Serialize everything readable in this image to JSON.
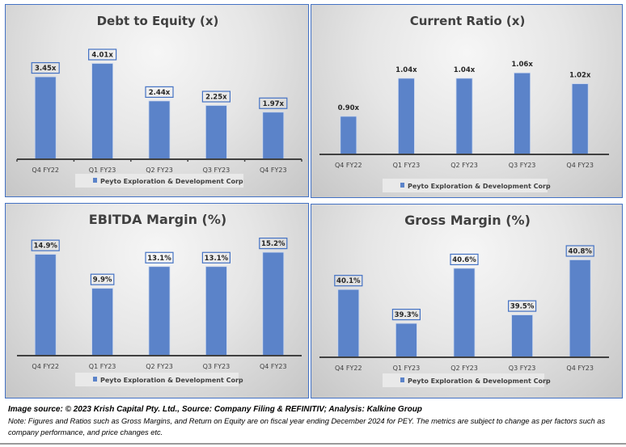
{
  "chart_data": [
    {
      "type": "bar",
      "title": "Debt to Equity (x)",
      "categories": [
        "Q4 FY22",
        "Q1 FY23",
        "Q2 FY23",
        "Q3 FY23",
        "Q4 FY23"
      ],
      "series": [
        {
          "name": "Peyto Exploration & Development Corp",
          "values": [
            3.45,
            4.01,
            2.44,
            2.25,
            1.97
          ]
        }
      ],
      "data_labels": [
        "3.45x",
        "4.01x",
        "2.44x",
        "2.25x",
        "1.97x"
      ],
      "boxed_labels": true,
      "xlabel": "",
      "ylabel": "",
      "ylim": [
        0,
        4.5
      ],
      "grid": false,
      "legend": "bottom"
    },
    {
      "type": "bar",
      "title": "Current Ratio (x)",
      "categories": [
        "Q4 FY22",
        "Q1 FY23",
        "Q2 FY23",
        "Q3 FY23",
        "Q4 FY23"
      ],
      "series": [
        {
          "name": "Peyto Exploration & Development Corp",
          "values": [
            0.9,
            1.04,
            1.04,
            1.06,
            1.02
          ]
        }
      ],
      "data_labels": [
        "0.90x",
        "1.04x",
        "1.04x",
        "1.06x",
        "1.02x"
      ],
      "boxed_labels": false,
      "xlabel": "",
      "ylabel": "",
      "ylim": [
        0.76,
        1.12
      ],
      "grid": false,
      "legend": "bottom"
    },
    {
      "type": "bar",
      "title": "EBITDA Margin (%)",
      "categories": [
        "Q4 FY22",
        "Q1 FY23",
        "Q2 FY23",
        "Q3 FY23",
        "Q4 FY23"
      ],
      "series": [
        {
          "name": "Peyto Exploration & Development Corp",
          "values": [
            14.9,
            9.9,
            13.1,
            13.1,
            15.2
          ]
        }
      ],
      "data_labels": [
        "14.9%",
        "9.9%",
        "13.1%",
        "13.1%",
        "15.2%"
      ],
      "boxed_labels": true,
      "xlabel": "",
      "ylabel": "",
      "ylim": [
        0,
        16.4
      ],
      "grid": false,
      "legend": "bottom"
    },
    {
      "type": "bar",
      "title": "Gross Margin (%)",
      "categories": [
        "Q4 FY22",
        "Q1 FY23",
        "Q2 FY23",
        "Q3 FY23",
        "Q4 FY23"
      ],
      "series": [
        {
          "name": "Peyto Exploration & Development Corp",
          "values": [
            40.1,
            39.3,
            40.6,
            39.5,
            40.8
          ]
        }
      ],
      "data_labels": [
        "40.1%",
        "39.3%",
        "40.6%",
        "39.5%",
        "40.8%"
      ],
      "boxed_labels": true,
      "xlabel": "",
      "ylabel": "",
      "ylim": [
        38.5,
        41.0
      ],
      "grid": false,
      "legend": "bottom"
    }
  ],
  "colors": {
    "bar": "#5b83c9",
    "frame": "#4472c4",
    "axis": "#404040"
  },
  "footer": {
    "source": "Image source: © 2023 Krish Capital Pty. Ltd., Source: Company Filing & REFINITIV; Analysis: Kalkine Group",
    "note": "Note: Figures and Ratios such as  Gross Margins, and Return on Equity are on fiscal year ending  December  2024  for PEY. The metrics are subject to change as per factors such as company performance, and price changes etc."
  }
}
